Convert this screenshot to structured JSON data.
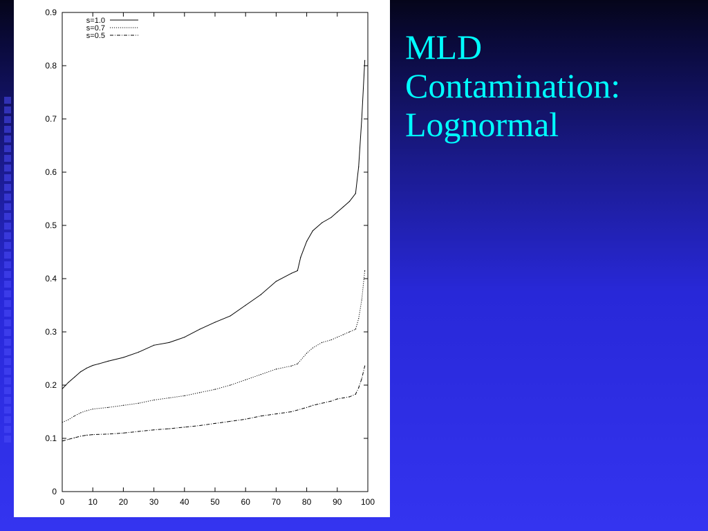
{
  "slide": {
    "title_lines": [
      "MLD",
      "Contamination:",
      "Lognormal"
    ]
  },
  "colors": {
    "title": "#00ffff",
    "background_bottom": "#3434f0",
    "background_top": "#05051a"
  },
  "chart_data": {
    "type": "line",
    "title": "",
    "xlabel": "",
    "ylabel": "",
    "xlim": [
      0,
      100
    ],
    "ylim": [
      0,
      0.9
    ],
    "xticks": [
      0,
      10,
      20,
      30,
      40,
      50,
      60,
      70,
      80,
      90,
      100
    ],
    "yticks": [
      0,
      0.1,
      0.2,
      0.3,
      0.4,
      0.5,
      0.6,
      0.7,
      0.8,
      0.9
    ],
    "legend_position": "top-left",
    "grid": false,
    "series": [
      {
        "name": "s=1.0",
        "style": "solid",
        "x": [
          0,
          2,
          4,
          6,
          8,
          10,
          12,
          15,
          20,
          25,
          30,
          35,
          40,
          45,
          50,
          55,
          60,
          65,
          70,
          75,
          77,
          78,
          80,
          82,
          85,
          88,
          90,
          92,
          94,
          96,
          97,
          98,
          99
        ],
        "y": [
          0.193,
          0.205,
          0.215,
          0.225,
          0.232,
          0.237,
          0.24,
          0.245,
          0.252,
          0.262,
          0.275,
          0.28,
          0.29,
          0.305,
          0.318,
          0.33,
          0.35,
          0.37,
          0.395,
          0.41,
          0.415,
          0.44,
          0.47,
          0.49,
          0.505,
          0.515,
          0.525,
          0.535,
          0.545,
          0.56,
          0.61,
          0.7,
          0.81
        ]
      },
      {
        "name": "s=0.7",
        "style": "dotted",
        "x": [
          0,
          2,
          4,
          6,
          8,
          10,
          15,
          20,
          25,
          30,
          35,
          40,
          45,
          50,
          55,
          60,
          65,
          70,
          75,
          77,
          80,
          82,
          85,
          88,
          90,
          92,
          94,
          96,
          97,
          98,
          99
        ],
        "y": [
          0.13,
          0.135,
          0.142,
          0.148,
          0.152,
          0.155,
          0.158,
          0.162,
          0.166,
          0.172,
          0.176,
          0.18,
          0.186,
          0.192,
          0.2,
          0.21,
          0.22,
          0.23,
          0.236,
          0.24,
          0.26,
          0.27,
          0.28,
          0.285,
          0.29,
          0.295,
          0.3,
          0.305,
          0.325,
          0.36,
          0.415
        ]
      },
      {
        "name": "s=0.5",
        "style": "dashdot",
        "x": [
          0,
          2,
          4,
          6,
          8,
          10,
          15,
          20,
          25,
          30,
          35,
          40,
          45,
          50,
          55,
          60,
          65,
          70,
          75,
          80,
          82,
          85,
          88,
          90,
          92,
          94,
          96,
          97,
          98,
          99
        ],
        "y": [
          0.095,
          0.098,
          0.101,
          0.104,
          0.106,
          0.107,
          0.108,
          0.11,
          0.113,
          0.116,
          0.118,
          0.121,
          0.124,
          0.128,
          0.132,
          0.136,
          0.142,
          0.146,
          0.15,
          0.158,
          0.162,
          0.166,
          0.17,
          0.174,
          0.176,
          0.178,
          0.183,
          0.195,
          0.212,
          0.236
        ]
      }
    ]
  }
}
